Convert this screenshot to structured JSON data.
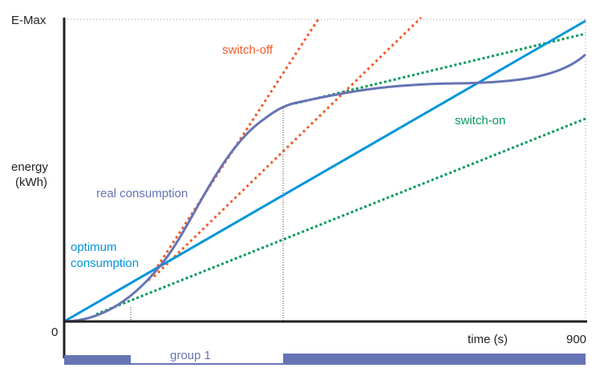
{
  "axes": {
    "y_max_label": "E-Max",
    "y_label_line1": "energy",
    "y_label_line2": "(kWh)",
    "origin_label": "0",
    "x_label": "time (s)",
    "x_max_label": "900"
  },
  "labels": {
    "switch_off": "switch-off",
    "switch_on": "switch-on",
    "real_consumption": "real consumption",
    "optimum_line1": "optimum",
    "optimum_line2": "consumption",
    "group": "group 1"
  },
  "colors": {
    "real_consumption": "#6673b4",
    "optimum": "#0095da",
    "switch_off": "#f05a28",
    "switch_on": "#009a5a",
    "axis": "#231f20"
  }
}
